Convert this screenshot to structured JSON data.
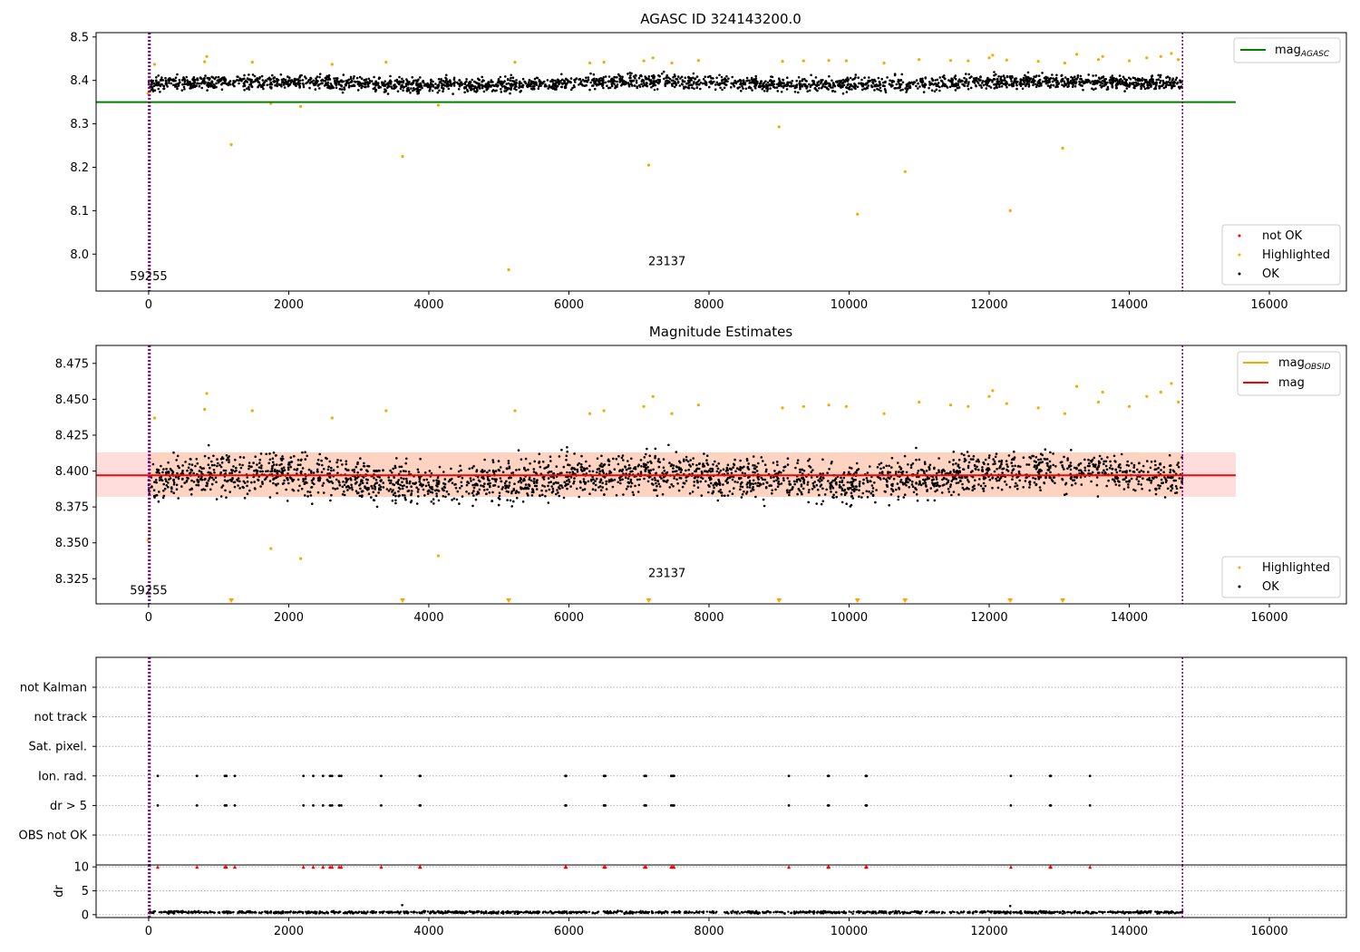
{
  "colors": {
    "ok": "#000000",
    "highlighted": "#ffa500",
    "not_ok": "#ff0000",
    "agasc_line": "#008000",
    "mean_line": "#ff0000",
    "band_fill": "#ffdddd",
    "band_fill_alt": "#ffd3c2",
    "obsid_line": "#ffa500",
    "vline": "#800080"
  },
  "chart_data": [
    {
      "type": "scatter",
      "title": "AGASC ID 324143200.0",
      "xlim": [
        -750,
        17100
      ],
      "ylim": [
        7.915,
        8.51
      ],
      "xticks": [
        0,
        2000,
        4000,
        6000,
        8000,
        10000,
        12000,
        14000,
        16000
      ],
      "yticks": [
        8.0,
        8.1,
        8.2,
        8.3,
        8.4,
        8.5
      ],
      "ytick_labels": [
        "8.0",
        "8.1",
        "8.2",
        "8.3",
        "8.4",
        "8.5"
      ],
      "annotations": [
        {
          "text": "59255",
          "x": 0,
          "y": 7.94
        },
        {
          "text": "23137",
          "x": 7400,
          "y": 7.975
        }
      ],
      "vlines": [
        0,
        20,
        14760
      ],
      "hline": {
        "name": "mag",
        "subscript": "AGASC",
        "y": 8.35,
        "x_end": 15520
      },
      "ok_band": {
        "x_start": 0,
        "x_end": 14760,
        "center": 8.392,
        "spread": 0.016
      },
      "highlighted_points": [
        [
          -10,
          8.37
        ],
        [
          10,
          8.375
        ],
        [
          85,
          8.437
        ],
        [
          800,
          8.443
        ],
        [
          830,
          8.455
        ],
        [
          1180,
          8.252
        ],
        [
          1480,
          8.442
        ],
        [
          1745,
          8.347
        ],
        [
          2170,
          8.34
        ],
        [
          2620,
          8.437
        ],
        [
          3390,
          8.442
        ],
        [
          3625,
          8.225
        ],
        [
          4135,
          8.343
        ],
        [
          5140,
          7.964
        ],
        [
          5230,
          8.442
        ],
        [
          6300,
          8.44
        ],
        [
          6500,
          8.442
        ],
        [
          7070,
          8.445
        ],
        [
          7140,
          8.205
        ],
        [
          7200,
          8.452
        ],
        [
          7470,
          8.44
        ],
        [
          7850,
          8.446
        ],
        [
          9000,
          8.293
        ],
        [
          9050,
          8.444
        ],
        [
          9350,
          8.445
        ],
        [
          9710,
          8.446
        ],
        [
          9960,
          8.445
        ],
        [
          10120,
          8.092
        ],
        [
          10500,
          8.44
        ],
        [
          10800,
          8.19
        ],
        [
          11000,
          8.448
        ],
        [
          11450,
          8.446
        ],
        [
          11700,
          8.445
        ],
        [
          12000,
          8.452
        ],
        [
          12050,
          8.458
        ],
        [
          12250,
          8.447
        ],
        [
          12300,
          8.1
        ],
        [
          12700,
          8.444
        ],
        [
          13050,
          8.244
        ],
        [
          13080,
          8.44
        ],
        [
          13250,
          8.46
        ],
        [
          13560,
          8.448
        ],
        [
          13620,
          8.455
        ],
        [
          14000,
          8.445
        ],
        [
          14250,
          8.452
        ],
        [
          14450,
          8.455
        ],
        [
          14600,
          8.462
        ],
        [
          14700,
          8.448
        ]
      ],
      "legend_top": [
        {
          "label": "mag",
          "subscript": "AGASC",
          "color": "#008000"
        }
      ],
      "legend_bottom": [
        {
          "label": "not OK",
          "color": "#ff0000"
        },
        {
          "label": "Highlighted",
          "color": "#ffa500"
        },
        {
          "label": "OK",
          "color": "#000000"
        }
      ]
    },
    {
      "type": "scatter",
      "title": "Magnitude Estimates",
      "xlim": [
        -750,
        17100
      ],
      "ylim": [
        8.3075,
        8.4875
      ],
      "xticks": [
        0,
        2000,
        4000,
        6000,
        8000,
        10000,
        12000,
        14000,
        16000
      ],
      "yticks": [
        8.325,
        8.35,
        8.375,
        8.4,
        8.425,
        8.45,
        8.475
      ],
      "ytick_labels": [
        "8.325",
        "8.350",
        "8.375",
        "8.400",
        "8.425",
        "8.450",
        "8.475"
      ],
      "annotations": [
        {
          "text": "59255",
          "x": 0,
          "y": 8.314
        },
        {
          "text": "23137",
          "x": 7400,
          "y": 8.326
        }
      ],
      "vlines": [
        0,
        20,
        14760
      ],
      "mean": {
        "y": 8.397,
        "low": 8.382,
        "high": 8.413,
        "x_end": 15520
      },
      "ok_band": {
        "x_start": 0,
        "x_end": 14760,
        "center": 8.394,
        "spread": 0.014
      },
      "highlighted_points": [
        [
          -10,
          8.352
        ],
        [
          20,
          8.36
        ],
        [
          85,
          8.437
        ],
        [
          800,
          8.443
        ],
        [
          830,
          8.454
        ],
        [
          1480,
          8.442
        ],
        [
          1745,
          8.346
        ],
        [
          2170,
          8.339
        ],
        [
          2620,
          8.437
        ],
        [
          3390,
          8.442
        ],
        [
          4135,
          8.341
        ],
        [
          5230,
          8.442
        ],
        [
          6300,
          8.44
        ],
        [
          6500,
          8.442
        ],
        [
          7070,
          8.445
        ],
        [
          7200,
          8.452
        ],
        [
          7470,
          8.44
        ],
        [
          7850,
          8.446
        ],
        [
          9050,
          8.444
        ],
        [
          9350,
          8.445
        ],
        [
          9710,
          8.446
        ],
        [
          9960,
          8.445
        ],
        [
          10500,
          8.44
        ],
        [
          11000,
          8.448
        ],
        [
          11450,
          8.446
        ],
        [
          11700,
          8.445
        ],
        [
          12000,
          8.452
        ],
        [
          12050,
          8.456
        ],
        [
          12250,
          8.447
        ],
        [
          12700,
          8.444
        ],
        [
          13080,
          8.44
        ],
        [
          13250,
          8.459
        ],
        [
          13560,
          8.448
        ],
        [
          13620,
          8.455
        ],
        [
          14000,
          8.445
        ],
        [
          14250,
          8.452
        ],
        [
          14450,
          8.455
        ],
        [
          14600,
          8.461
        ],
        [
          14700,
          8.448
        ]
      ],
      "offscale_markers_x": [
        1180,
        3625,
        5140,
        7140,
        9000,
        10120,
        10800,
        12300,
        13050
      ],
      "legend_top": [
        {
          "label": "mag",
          "subscript": "OBSID",
          "color": "#ffa500"
        },
        {
          "label": "mag",
          "subscript": "",
          "color": "#ff0000"
        }
      ],
      "legend_bottom": [
        {
          "label": "Highlighted",
          "color": "#ffa500"
        },
        {
          "label": "OK",
          "color": "#000000"
        }
      ]
    },
    {
      "type": "scatter",
      "xlim": [
        -750,
        17100
      ],
      "categories": [
        "not Kalman",
        "not track",
        "Sat. pixel.",
        "Ion. rad.",
        "dr > 5",
        "OBS not OK"
      ],
      "flag_rows": [
        "Ion. rad.",
        "dr > 5"
      ],
      "flag_x": [
        130,
        690,
        1090,
        1110,
        1230,
        2210,
        2350,
        2490,
        2590,
        2620,
        2720,
        2750,
        3320,
        3870,
        3880,
        5950,
        5960,
        6500,
        6520,
        7080,
        7100,
        7460,
        7480,
        7500,
        9140,
        9700,
        9710,
        10240,
        10250,
        12310,
        12870,
        12880,
        13440
      ],
      "vlines": [
        0,
        20,
        14760
      ],
      "dr": {
        "ylabel": "dr",
        "ylim": [
          -0.6,
          10.4
        ],
        "yticks": [
          0,
          5,
          10
        ],
        "ytick_labels": [
          "0",
          "5",
          "10"
        ],
        "clipped_value": 10,
        "typical": 0.5,
        "outliers": [
          [
            3620,
            2.0
          ],
          [
            12300,
            1.8
          ]
        ]
      },
      "xticks": [
        0,
        2000,
        4000,
        6000,
        8000,
        10000,
        12000,
        14000,
        16000
      ]
    }
  ]
}
